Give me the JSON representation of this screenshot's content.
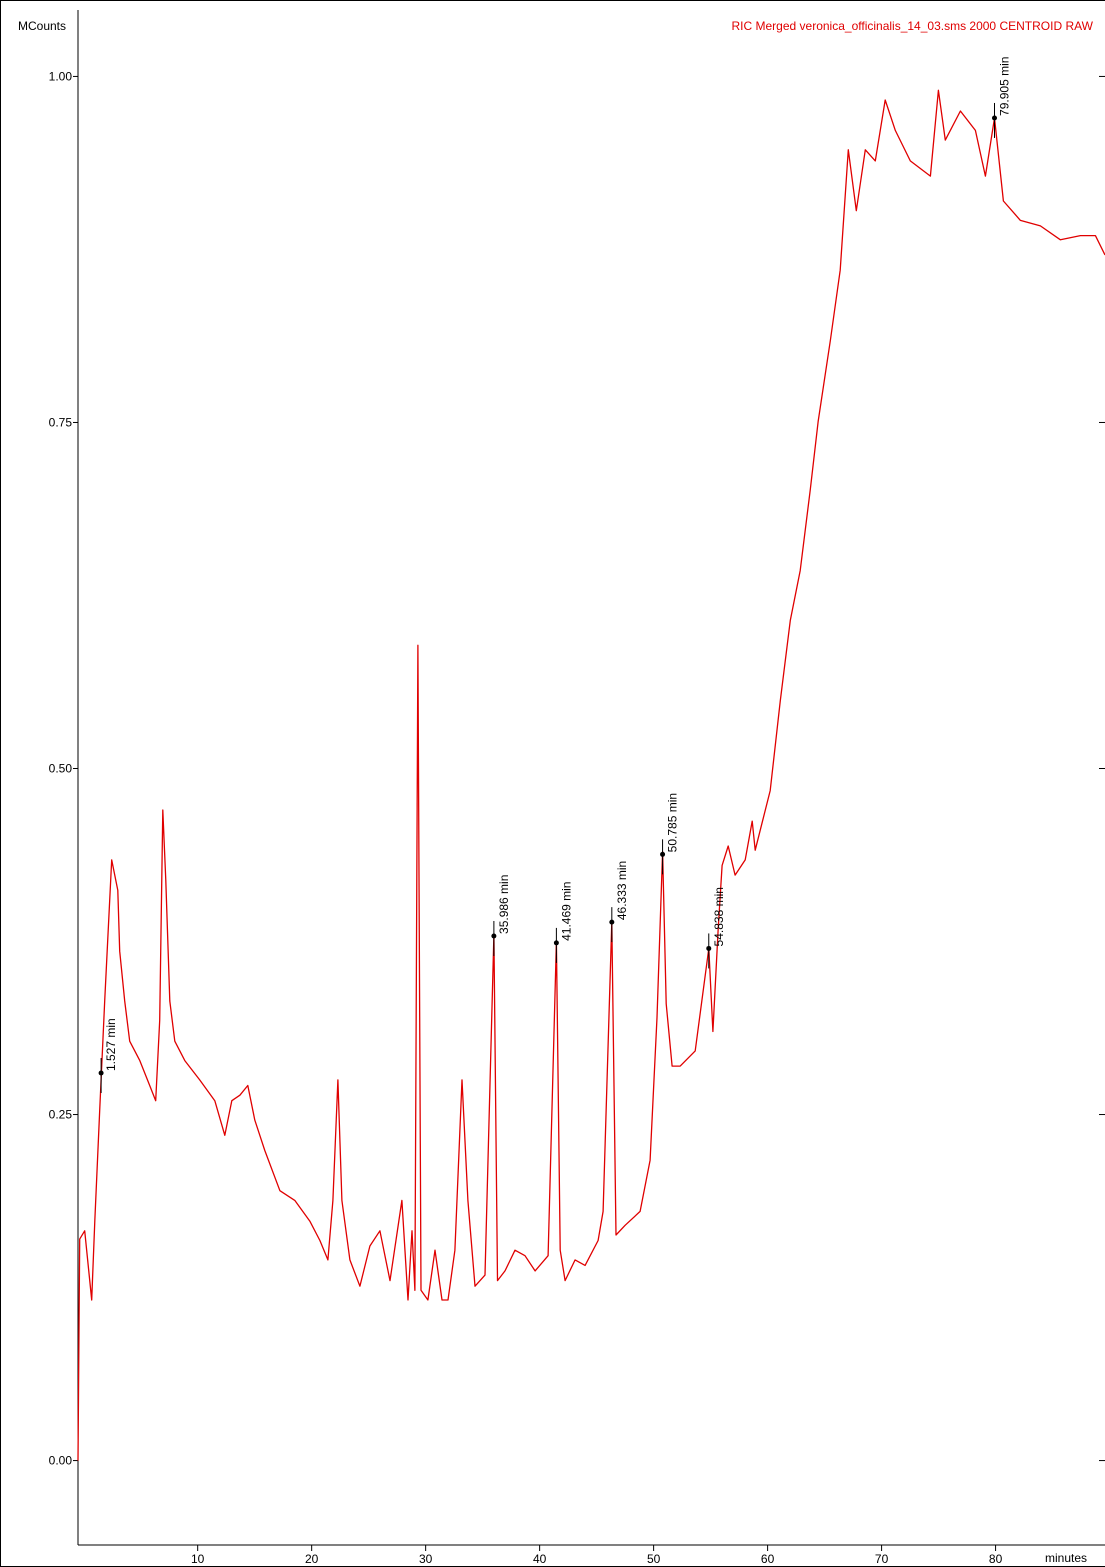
{
  "chart_data": {
    "type": "line",
    "title": "RIC Merged veronica_officinalis_14_03.sms 2000 CENTROID RAW",
    "y_label": "MCounts",
    "x_label": "minutes",
    "xlim": [
      -0.5,
      89.6
    ],
    "ylim": [
      -0.061,
      1.048
    ],
    "xticks": [
      10,
      20,
      30,
      40,
      50,
      60,
      70,
      80
    ],
    "yticks": [
      {
        "value": 0,
        "label": "0.00"
      },
      {
        "value": 0.25,
        "label": "0.25"
      },
      {
        "value": 0.5,
        "label": "0.50"
      },
      {
        "value": 0.75,
        "label": "0.75"
      },
      {
        "value": 1,
        "label": "1.00"
      }
    ],
    "x": [
      -0.5,
      -0.35,
      0.09,
      0.7,
      0.97,
      1.4,
      1.84,
      2.46,
      2.99,
      3.16,
      3.6,
      4.04,
      4.92,
      5.79,
      6.32,
      6.67,
      6.94,
      7.2,
      7.55,
      7.99,
      8.87,
      10.18,
      11.5,
      12.38,
      12.99,
      13.7,
      14.4,
      15.01,
      15.89,
      17.21,
      18.52,
      19.84,
      20.72,
      21.42,
      21.86,
      22.3,
      22.65,
      23.35,
      24.23,
      25.11,
      25.99,
      26.87,
      27.92,
      28.45,
      28.8,
      29.06,
      29.32,
      29.59,
      30.2,
      30.82,
      31.43,
      31.96,
      32.57,
      33.19,
      33.71,
      34.33,
      35.21,
      35.986,
      36.3,
      36.96,
      37.84,
      38.72,
      39.6,
      40.74,
      41.469,
      41.8,
      42.23,
      43.11,
      43.99,
      45.13,
      45.57,
      46.333,
      46.7,
      47.5,
      48.81,
      49.69,
      50.3,
      50.785,
      51.1,
      51.62,
      52.33,
      53.65,
      54.838,
      55.2,
      55.66,
      56.01,
      56.54,
      57.15,
      58.03,
      58.65,
      58.91,
      60.23,
      61.11,
      61.99,
      62.86,
      63.74,
      64.44,
      65.5,
      66.37,
      67.08,
      67.78,
      68.57,
      69.45,
      70.32,
      71.2,
      72.52,
      74.28,
      74.98,
      75.59,
      76.91,
      78.23,
      79.11,
      79.905,
      80.69,
      82.18,
      83.93,
      85.69,
      87.44,
      88.76,
      89.6
    ],
    "series": [
      {
        "name": "RIC",
        "color": "#e00000",
        "values": [
          0.0,
          0.16,
          0.166,
          0.116,
          0.173,
          0.253,
          0.332,
          0.434,
          0.412,
          0.368,
          0.332,
          0.303,
          0.289,
          0.271,
          0.26,
          0.318,
          0.47,
          0.419,
          0.332,
          0.303,
          0.289,
          0.275,
          0.26,
          0.235,
          0.26,
          0.264,
          0.271,
          0.246,
          0.224,
          0.195,
          0.188,
          0.173,
          0.159,
          0.145,
          0.188,
          0.275,
          0.188,
          0.145,
          0.126,
          0.155,
          0.166,
          0.13,
          0.188,
          0.116,
          0.166,
          0.123,
          0.589,
          0.123,
          0.116,
          0.152,
          0.116,
          0.116,
          0.152,
          0.275,
          0.188,
          0.126,
          0.134,
          0.38,
          0.13,
          0.137,
          0.152,
          0.148,
          0.137,
          0.148,
          0.375,
          0.152,
          0.13,
          0.145,
          0.141,
          0.159,
          0.18,
          0.389,
          0.163,
          0.17,
          0.18,
          0.217,
          0.32,
          0.44,
          0.33,
          0.285,
          0.285,
          0.296,
          0.37,
          0.31,
          0.383,
          0.43,
          0.444,
          0.423,
          0.434,
          0.462,
          0.441,
          0.484,
          0.549,
          0.607,
          0.643,
          0.701,
          0.751,
          0.809,
          0.86,
          0.947,
          0.903,
          0.947,
          0.939,
          0.983,
          0.961,
          0.939,
          0.928,
          0.99,
          0.954,
          0.975,
          0.961,
          0.928,
          0.97,
          0.91,
          0.896,
          0.892,
          0.882,
          0.885,
          0.885,
          0.871
        ]
      }
    ],
    "annotations": [
      {
        "label": "1.527 min",
        "x": 1.527,
        "y": 0.28
      },
      {
        "label": "35.986 min",
        "x": 35.986,
        "y": 0.379
      },
      {
        "label": "41.469 min",
        "x": 41.469,
        "y": 0.374
      },
      {
        "label": "46.333 min",
        "x": 46.333,
        "y": 0.389
      },
      {
        "label": "50.785 min",
        "x": 50.785,
        "y": 0.438
      },
      {
        "label": "54.838 min",
        "x": 54.838,
        "y": 0.37
      },
      {
        "label": "79.905 min",
        "x": 79.905,
        "y": 0.97
      }
    ]
  }
}
